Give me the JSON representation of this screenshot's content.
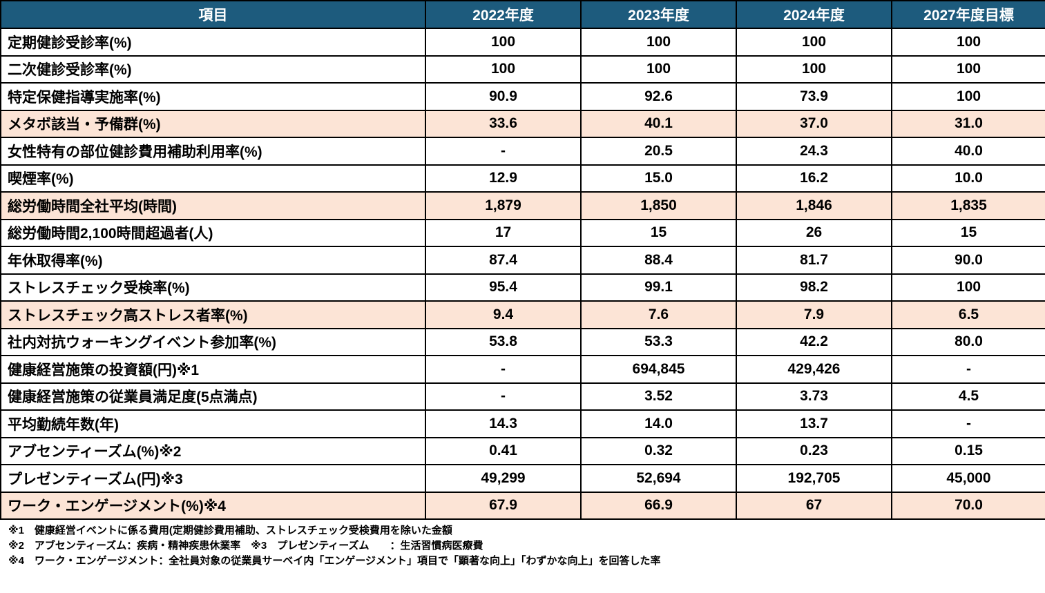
{
  "colors": {
    "header_bg": "#1D5B7D",
    "header_text": "#FFFFFF",
    "highlight_bg": "#FCE4D6",
    "border": "#000000",
    "text": "#000000"
  },
  "table": {
    "columns": [
      "項目",
      "2022年度",
      "2023年度",
      "2024年度",
      "2027年度目標"
    ],
    "rows": [
      {
        "label": "定期健診受診率(%)",
        "values": [
          "100",
          "100",
          "100",
          "100"
        ],
        "highlight": false
      },
      {
        "label": "二次健診受診率(%)",
        "values": [
          "100",
          "100",
          "100",
          "100"
        ],
        "highlight": false
      },
      {
        "label": "特定保健指導実施率(%)",
        "values": [
          "90.9",
          "92.6",
          "73.9",
          "100"
        ],
        "highlight": false
      },
      {
        "label": "メタボ該当・予備群(%)",
        "values": [
          "33.6",
          "40.1",
          "37.0",
          "31.0"
        ],
        "highlight": true
      },
      {
        "label": "女性特有の部位健診費用補助利用率(%)",
        "values": [
          "-",
          "20.5",
          "24.3",
          "40.0"
        ],
        "highlight": false
      },
      {
        "label": "喫煙率(%)",
        "values": [
          "12.9",
          "15.0",
          "16.2",
          "10.0"
        ],
        "highlight": false
      },
      {
        "label": "総労働時間全社平均(時間)",
        "values": [
          "1,879",
          "1,850",
          "1,846",
          "1,835"
        ],
        "highlight": true
      },
      {
        "label": "総労働時間2,100時間超過者(人)",
        "values": [
          "17",
          "15",
          "26",
          "15"
        ],
        "highlight": false
      },
      {
        "label": "年休取得率(%)",
        "values": [
          "87.4",
          "88.4",
          "81.7",
          "90.0"
        ],
        "highlight": false
      },
      {
        "label": "ストレスチェック受検率(%)",
        "values": [
          "95.4",
          "99.1",
          "98.2",
          "100"
        ],
        "highlight": false
      },
      {
        "label": "ストレスチェック高ストレス者率(%)",
        "values": [
          "9.4",
          "7.6",
          "7.9",
          "6.5"
        ],
        "highlight": true
      },
      {
        "label": "社内対抗ウォーキングイベント参加率(%)",
        "values": [
          "53.8",
          "53.3",
          "42.2",
          "80.0"
        ],
        "highlight": false
      },
      {
        "label": "健康経営施策の投資額(円)※1",
        "values": [
          "-",
          "694,845",
          "429,426",
          "-"
        ],
        "highlight": false
      },
      {
        "label": "健康経営施策の従業員満足度(5点満点)",
        "values": [
          "-",
          "3.52",
          "3.73",
          "4.5"
        ],
        "highlight": false
      },
      {
        "label": "平均勤続年数(年)",
        "values": [
          "14.3",
          "14.0",
          "13.7",
          "-"
        ],
        "highlight": false
      },
      {
        "label": "アブセンティーズム(%)※2",
        "values": [
          "0.41",
          "0.32",
          "0.23",
          "0.15"
        ],
        "highlight": false
      },
      {
        "label": "プレゼンティーズム(円)※3",
        "values": [
          "49,299",
          "52,694",
          "192,705",
          "45,000"
        ],
        "highlight": false
      },
      {
        "label": "ワーク・エンゲージメント(%)※4",
        "values": [
          "67.9",
          "66.9",
          "67",
          "70.0"
        ],
        "highlight": true
      }
    ]
  },
  "footnotes": [
    "※1　健康経営イベントに係る費用(定期健診費用補助、ストレスチェック受検費用を除いた金額",
    "※2　アブセンティーズム：疾病・精神疾患休業率　※3　プレゼンティーズム　　：生活習慣病医療費",
    "※4　ワーク・エンゲージメント：全社員対象の従業員サーベイ内「エンゲージメント」項目で「顕著な向上」「わずかな向上」を回答した率"
  ]
}
